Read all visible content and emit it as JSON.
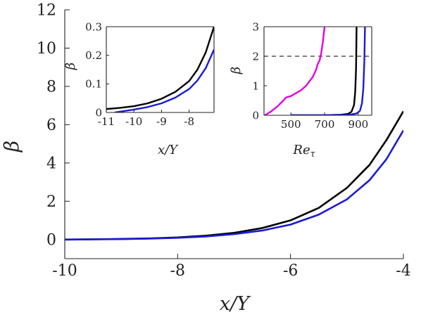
{
  "chart_data": [
    {
      "id": "main",
      "type": "line",
      "xlabel": "x/Y",
      "ylabel": "β",
      "xlim": [
        -10,
        -4
      ],
      "ylim": [
        -1,
        12
      ],
      "xticks": [
        -10,
        -8,
        -6,
        -4
      ],
      "xtick_labels": [
        "-10",
        "-8",
        "-6",
        "-4"
      ],
      "yticks": [
        0,
        2,
        4,
        6,
        8,
        10,
        12
      ],
      "ytick_labels": [
        "0",
        "2",
        "4",
        "6",
        "8",
        "10",
        "12"
      ],
      "series": [
        {
          "color": "#000000",
          "x": [
            -10,
            -9.5,
            -9,
            -8.5,
            -8,
            -7.5,
            -7,
            -6.5,
            -6,
            -5.5,
            -5,
            -4.6,
            -4.3,
            -4
          ],
          "y": [
            0,
            0.01,
            0.03,
            0.06,
            0.11,
            0.2,
            0.35,
            0.6,
            1.0,
            1.65,
            2.7,
            3.9,
            5.2,
            6.7
          ]
        },
        {
          "color": "#1a1ad6",
          "x": [
            -10,
            -9.5,
            -9,
            -8.5,
            -8,
            -7.5,
            -7,
            -6.5,
            -6,
            -5.5,
            -5,
            -4.6,
            -4.3,
            -4
          ],
          "y": [
            0,
            0.01,
            0.02,
            0.05,
            0.09,
            0.16,
            0.28,
            0.47,
            0.78,
            1.3,
            2.1,
            3.1,
            4.2,
            5.7
          ]
        }
      ]
    },
    {
      "id": "inset1",
      "type": "line",
      "xlabel": "x/Y",
      "ylabel": "β",
      "xlim": [
        -11,
        -7.1
      ],
      "ylim": [
        0,
        0.3
      ],
      "xticks": [
        -11,
        -10,
        -9,
        -8
      ],
      "xtick_labels": [
        "-11",
        "-10",
        "-9",
        "-8"
      ],
      "yticks": [
        0,
        0.1,
        0.2,
        0.3
      ],
      "ytick_labels": [
        "0",
        "0.1",
        "0.2",
        "0.3"
      ],
      "series": [
        {
          "color": "#000000",
          "x": [
            -11,
            -10.5,
            -10,
            -9.5,
            -9,
            -8.5,
            -8,
            -7.7,
            -7.4,
            -7.1
          ],
          "y": [
            0.012,
            0.016,
            0.022,
            0.032,
            0.048,
            0.072,
            0.11,
            0.15,
            0.21,
            0.3
          ]
        },
        {
          "color": "#1a1ad6",
          "x": [
            -10.7,
            -10.5,
            -10,
            -9.5,
            -9,
            -8.5,
            -8,
            -7.7,
            -7.4,
            -7.1
          ],
          "y": [
            0.0,
            0.003,
            0.01,
            0.019,
            0.032,
            0.052,
            0.082,
            0.112,
            0.155,
            0.22
          ]
        }
      ]
    },
    {
      "id": "inset2",
      "type": "line",
      "xlabel": "Re_τ",
      "ylabel": "β",
      "xlim": [
        340,
        980
      ],
      "ylim": [
        0,
        3
      ],
      "xticks": [
        500,
        700,
        900
      ],
      "xtick_labels": [
        "500",
        "700",
        "900"
      ],
      "yticks": [
        0,
        1,
        2,
        3
      ],
      "ytick_labels": [
        "0",
        "1",
        "2",
        "3"
      ],
      "reference_line": {
        "y": 2,
        "style": "dashed"
      },
      "series": [
        {
          "color": "#e600e6",
          "x": [
            345,
            380,
            420,
            455,
            470,
            500,
            530,
            560,
            590,
            610,
            630,
            650,
            660,
            670,
            680,
            690,
            700
          ],
          "y": [
            0.0,
            0.12,
            0.3,
            0.5,
            0.6,
            0.65,
            0.75,
            0.85,
            1.0,
            1.15,
            1.3,
            1.55,
            1.75,
            1.85,
            2.1,
            2.5,
            3.0
          ]
        },
        {
          "color": "#000000",
          "x": [
            500,
            700,
            800,
            840,
            860,
            875,
            882,
            887,
            890
          ],
          "y": [
            0.0,
            0.0,
            0.02,
            0.05,
            0.12,
            0.35,
            0.8,
            1.6,
            3.0
          ]
        },
        {
          "color": "#1a1ad6",
          "x": [
            500,
            700,
            850,
            890,
            910,
            922,
            930,
            936,
            940
          ],
          "y": [
            0.0,
            0.0,
            0.02,
            0.06,
            0.15,
            0.4,
            0.9,
            1.8,
            3.0
          ]
        }
      ]
    }
  ]
}
